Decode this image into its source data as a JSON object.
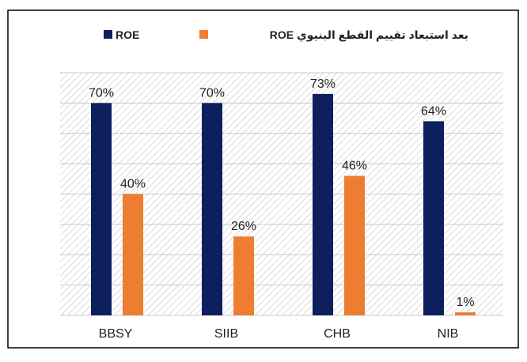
{
  "chart_data": {
    "type": "bar",
    "categories": [
      "BBSY",
      "SIIB",
      "CHB",
      "NIB"
    ],
    "series": [
      {
        "name": "ROE",
        "color": "#0d1f5c",
        "values": [
          70,
          70,
          73,
          64
        ],
        "value_labels": [
          "70%",
          "70%",
          "73%",
          "64%"
        ]
      },
      {
        "name": "بعد استبعاد تقييم القطع البنيوي ROE",
        "color": "#ed7d31",
        "values": [
          40,
          26,
          46,
          1
        ],
        "value_labels": [
          "40%",
          "26%",
          "46%",
          "1%"
        ]
      }
    ],
    "ylim": [
      0,
      80
    ],
    "yticks": [
      0,
      10,
      20,
      30,
      40,
      50,
      60,
      70,
      80
    ],
    "grid": true,
    "legend": "top"
  }
}
